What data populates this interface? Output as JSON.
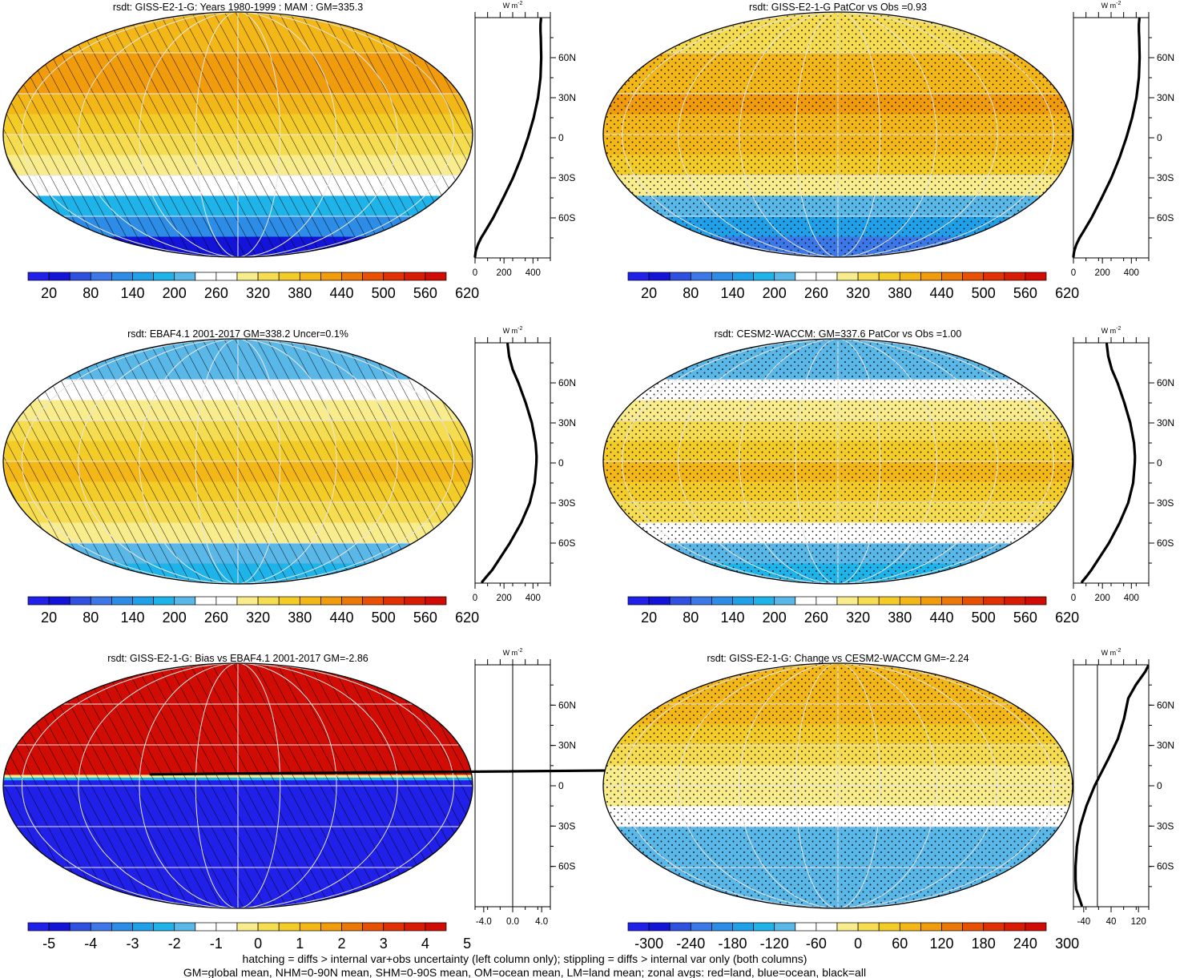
{
  "figure": {
    "footer": [
      "hatching = diffs > internal var+obs uncertainty (left column only); stippling = diffs > internal var only (both columns)",
      "GM=global mean, NHM=0-90N mean, SHM=0-90S mean, OM=ocean mean, LM=land mean; zonal avgs: red=land, blue=ocean, black=all"
    ],
    "units_label": "W m",
    "units_exp": "-2",
    "lat_ticks": [
      "60N",
      "30N",
      "0",
      "30S",
      "60S"
    ]
  },
  "palette": [
    "#2020e8",
    "#1414d8",
    "#3050e0",
    "#3c78e8",
    "#2c8ce6",
    "#20a0e8",
    "#1eb4ea",
    "#5ab8e8",
    "#ffffff",
    "#ffffff",
    "#f8ec8c",
    "#f5dc50",
    "#f4cc28",
    "#f3b818",
    "#f09c0c",
    "#ec7808",
    "#e85004",
    "#e03004",
    "#d81c04",
    "#d00c04"
  ],
  "panels": [
    {
      "id": "model-clim",
      "title": "rsdt: GISS-E2-1-G: Years 1980-1999 : MAM : GM=335.3",
      "cbar_labels": [
        "20",
        "80",
        "140",
        "200",
        "260",
        "320",
        "380",
        "440",
        "500",
        "560",
        "620"
      ],
      "pattern": "hatch",
      "range": [
        -10,
        650
      ],
      "bands": [
        [
          75,
          451
        ],
        [
          60,
          459
        ],
        [
          45,
          456
        ],
        [
          30,
          440
        ],
        [
          15,
          410
        ],
        [
          0,
          370
        ],
        [
          -15,
          325
        ],
        [
          -30,
          270
        ],
        [
          -45,
          205
        ],
        [
          -60,
          135
        ],
        [
          -75,
          55
        ],
        [
          -90,
          0
        ]
      ],
      "zonal_axis": {
        "ticks": [
          "0",
          "200",
          "400"
        ],
        "tick_values": [
          0,
          200,
          400
        ],
        "range": [
          0,
          520
        ],
        "zero_line": false
      },
      "zonal": [
        [
          89,
          455
        ],
        [
          85,
          452
        ],
        [
          80,
          452
        ],
        [
          75,
          454
        ],
        [
          60,
          457
        ],
        [
          45,
          452
        ],
        [
          30,
          435
        ],
        [
          15,
          405
        ],
        [
          0,
          365
        ],
        [
          -15,
          318
        ],
        [
          -30,
          262
        ],
        [
          -45,
          195
        ],
        [
          -60,
          125
        ],
        [
          -70,
          70
        ],
        [
          -75,
          42
        ],
        [
          -80,
          20
        ],
        [
          -85,
          5
        ],
        [
          -89,
          0
        ]
      ]
    },
    {
      "id": "model-patcor",
      "title": "rsdt: GISS-E2-1-G PatCor vs Obs =0.93",
      "cbar_labels": [
        "20",
        "80",
        "140",
        "200",
        "260",
        "320",
        "380",
        "440",
        "500",
        "560",
        "620"
      ],
      "pattern": "stipple",
      "range": [
        -10,
        650
      ],
      "bands": [
        [
          75,
          380
        ],
        [
          60,
          430
        ],
        [
          45,
          450
        ],
        [
          30,
          455
        ],
        [
          15,
          450
        ],
        [
          0,
          430
        ],
        [
          -15,
          395
        ],
        [
          -30,
          330
        ],
        [
          -45,
          250
        ],
        [
          -60,
          185
        ],
        [
          -75,
          90
        ],
        [
          -90,
          30
        ]
      ],
      "zonal_axis": {
        "ticks": [
          "0",
          "200",
          "400"
        ],
        "tick_values": [
          0,
          200,
          400
        ],
        "range": [
          0,
          520
        ],
        "zero_line": false
      },
      "zonal": [
        [
          89,
          455
        ],
        [
          85,
          452
        ],
        [
          80,
          452
        ],
        [
          75,
          454
        ],
        [
          60,
          457
        ],
        [
          45,
          452
        ],
        [
          30,
          435
        ],
        [
          15,
          405
        ],
        [
          0,
          365
        ],
        [
          -15,
          318
        ],
        [
          -30,
          262
        ],
        [
          -45,
          195
        ],
        [
          -60,
          125
        ],
        [
          -70,
          70
        ],
        [
          -75,
          42
        ],
        [
          -80,
          20
        ],
        [
          -85,
          5
        ],
        [
          -89,
          0
        ]
      ]
    },
    {
      "id": "obs-clim",
      "title": "rsdt: EBAF4.1 2001-2017 GM=338.2 Uncer=0.1%",
      "cbar_labels": [
        "20",
        "80",
        "140",
        "200",
        "260",
        "320",
        "380",
        "440",
        "500",
        "560",
        "620"
      ],
      "pattern": "hatch",
      "range": [
        -10,
        650
      ],
      "bands": [
        [
          75,
          230
        ],
        [
          60,
          300
        ],
        [
          45,
          345
        ],
        [
          30,
          385
        ],
        [
          15,
          415
        ],
        [
          0,
          425
        ],
        [
          -15,
          415
        ],
        [
          -30,
          380
        ],
        [
          -45,
          325
        ],
        [
          -60,
          250
        ],
        [
          -75,
          205
        ],
        [
          -90,
          190
        ]
      ],
      "zonal_axis": {
        "ticks": [
          "0",
          "200",
          "400"
        ],
        "tick_values": [
          0,
          200,
          400
        ],
        "range": [
          0,
          520
        ],
        "zero_line": false
      },
      "zonal": [
        [
          89,
          225
        ],
        [
          80,
          235
        ],
        [
          70,
          260
        ],
        [
          60,
          300
        ],
        [
          45,
          350
        ],
        [
          30,
          392
        ],
        [
          15,
          418
        ],
        [
          5,
          425
        ],
        [
          0,
          424
        ],
        [
          -15,
          412
        ],
        [
          -30,
          378
        ],
        [
          -45,
          318
        ],
        [
          -60,
          240
        ],
        [
          -70,
          180
        ],
        [
          -80,
          120
        ],
        [
          -85,
          80
        ],
        [
          -89,
          50
        ]
      ]
    },
    {
      "id": "ref-model",
      "title": "rsdt: CESM2-WACCM: GM=337.6 PatCor vs Obs =1.00",
      "cbar_labels": [
        "20",
        "80",
        "140",
        "200",
        "260",
        "320",
        "380",
        "440",
        "500",
        "560",
        "620"
      ],
      "pattern": "stipple",
      "range": [
        -10,
        650
      ],
      "bands": [
        [
          75,
          235
        ],
        [
          60,
          300
        ],
        [
          45,
          345
        ],
        [
          30,
          385
        ],
        [
          15,
          415
        ],
        [
          0,
          425
        ],
        [
          -15,
          415
        ],
        [
          -30,
          380
        ],
        [
          -45,
          300
        ],
        [
          -60,
          250
        ],
        [
          -75,
          205
        ],
        [
          -90,
          180
        ]
      ],
      "zonal_axis": {
        "ticks": [
          "0",
          "200",
          "400"
        ],
        "tick_values": [
          0,
          200,
          400
        ],
        "range": [
          0,
          520
        ],
        "zero_line": false
      },
      "zonal": [
        [
          89,
          230
        ],
        [
          80,
          240
        ],
        [
          70,
          265
        ],
        [
          60,
          305
        ],
        [
          45,
          352
        ],
        [
          30,
          392
        ],
        [
          15,
          418
        ],
        [
          5,
          425
        ],
        [
          0,
          424
        ],
        [
          -15,
          412
        ],
        [
          -30,
          378
        ],
        [
          -45,
          318
        ],
        [
          -60,
          245
        ],
        [
          -70,
          185
        ],
        [
          -80,
          125
        ],
        [
          -85,
          90
        ],
        [
          -89,
          60
        ]
      ]
    },
    {
      "id": "bias",
      "title": "rsdt: GISS-E2-1-G: Bias vs EBAF4.1 2001-2017 GM=-2.86",
      "cbar_labels": [
        "-5",
        "-4",
        "-3",
        "-2",
        "-1",
        "0",
        "1",
        "2",
        "3",
        "4",
        "5"
      ],
      "pattern": "hatch",
      "range": [
        -5.5,
        5.5
      ],
      "bands": [
        [
          75,
          5.5
        ],
        [
          60,
          5.5
        ],
        [
          45,
          5.5
        ],
        [
          30,
          5.5
        ],
        [
          15,
          5.5
        ],
        [
          10,
          5.5
        ],
        [
          8,
          0.5
        ],
        [
          6,
          -2.0
        ],
        [
          4,
          -5.5
        ],
        [
          0,
          -5.5
        ],
        [
          -15,
          -5.5
        ],
        [
          -30,
          -5.5
        ],
        [
          -45,
          -5.5
        ],
        [
          -60,
          -5.5
        ],
        [
          -75,
          -5.5
        ],
        [
          -90,
          -5.5
        ]
      ],
      "zonal_axis": {
        "ticks": [
          "-4.0",
          "0.0",
          "4.0"
        ],
        "tick_values": [
          -4,
          0,
          4
        ],
        "range": [
          -5.2,
          5.2
        ],
        "zero_line": true
      },
      "zonal": [
        [
          8.5,
          -50
        ],
        [
          13,
          50
        ]
      ]
    },
    {
      "id": "change",
      "title": "rsdt: GISS-E2-1-G: Change vs CESM2-WACCM GM=-2.24",
      "cbar_labels": [
        "-300",
        "-240",
        "-180",
        "-120",
        "-60",
        "0",
        "60",
        "120",
        "180",
        "240",
        "300"
      ],
      "pattern": "stipple",
      "range": [
        -330,
        330
      ],
      "bands": [
        [
          75,
          130
        ],
        [
          60,
          100
        ],
        [
          45,
          75
        ],
        [
          30,
          45
        ],
        [
          15,
          0
        ],
        [
          0,
          0
        ],
        [
          -15,
          -55
        ],
        [
          -30,
          -75
        ],
        [
          -45,
          -75
        ],
        [
          -60,
          -75
        ],
        [
          -75,
          -75
        ],
        [
          -90,
          -75
        ]
      ],
      "zonal_axis": {
        "ticks": [
          "-40",
          "40",
          "120"
        ],
        "tick_values": [
          -40,
          40,
          120
        ],
        "range": [
          -70,
          150
        ],
        "zero_line": true
      },
      "zonal": [
        [
          89,
          148
        ],
        [
          85,
          140
        ],
        [
          75,
          112
        ],
        [
          65,
          90
        ],
        [
          50,
          78
        ],
        [
          35,
          60
        ],
        [
          20,
          32
        ],
        [
          10,
          12
        ],
        [
          0,
          -8
        ],
        [
          -15,
          -32
        ],
        [
          -30,
          -50
        ],
        [
          -45,
          -60
        ],
        [
          -60,
          -64
        ],
        [
          -70,
          -64
        ],
        [
          -77,
          -62
        ],
        [
          -82,
          -55
        ],
        [
          -89,
          -46
        ]
      ]
    }
  ]
}
